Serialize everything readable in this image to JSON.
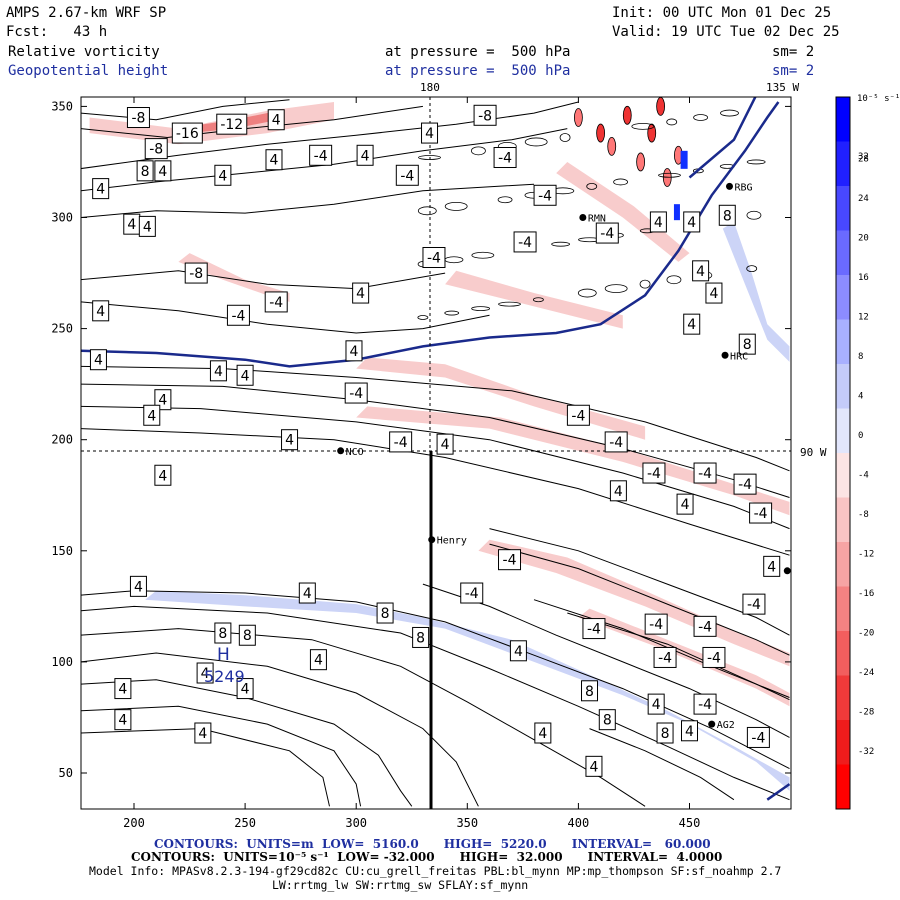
{
  "header": {
    "line1_left": "AMPS 2.67-km WRF SP",
    "line2_left": "Fcst:   43 h",
    "init": "Init: 00 UTC Mon 01 Dec 25",
    "valid": "Valid: 19 UTC Tue 02 Dec 25",
    "field1": "Relative vorticity",
    "field1_level": "at pressure =  500 hPa",
    "field1_sm": "sm= 2",
    "field2": "Geopotential height",
    "field2_level": "at pressure =  500 hPa",
    "field2_sm": "sm= 2"
  },
  "map_labels": {
    "lon_180": "180",
    "lon_135w": "135 W",
    "lon_90w": "90 W",
    "high_symbol": "H",
    "high_value": "5249"
  },
  "stations": [
    {
      "name": "NCO",
      "x": 293,
      "y": 195
    },
    {
      "name": "Henry",
      "x": 334,
      "y": 155
    },
    {
      "name": "AG2",
      "x": 460,
      "y": 72
    },
    {
      "name": "RBG",
      "x": 468,
      "y": 314
    },
    {
      "name": "RMN",
      "x": 402,
      "y": 300
    },
    {
      "name": "HRC",
      "x": 466,
      "y": 238
    },
    {
      "name": "",
      "x": 494,
      "y": 141
    }
  ],
  "chart_data": {
    "type": "contour",
    "xlim": [
      175,
      495
    ],
    "ylim": [
      35,
      355
    ],
    "xticks": [
      200,
      250,
      300,
      350,
      400,
      450
    ],
    "yticks": [
      50,
      100,
      150,
      200,
      250,
      300,
      350
    ],
    "colorbar": {
      "unit_label": "10⁻⁵ s⁻¹",
      "ticks": [
        32,
        28,
        24,
        20,
        16,
        12,
        8,
        4,
        0,
        -4,
        -8,
        -12,
        -16,
        -20,
        -24,
        -28,
        -32
      ]
    },
    "height_contour": {
      "label": "5249 high",
      "points": [
        [
          176,
          240
        ],
        [
          210,
          239
        ],
        [
          250,
          236
        ],
        [
          270,
          233
        ],
        [
          300,
          236
        ],
        [
          330,
          242
        ],
        [
          360,
          246
        ],
        [
          390,
          248
        ],
        [
          410,
          252
        ],
        [
          430,
          265
        ],
        [
          445,
          285
        ],
        [
          460,
          310
        ],
        [
          475,
          330
        ],
        [
          485,
          345
        ],
        [
          490,
          352
        ]
      ]
    },
    "contour_labels": [
      {
        "x": 202,
        "y": 345,
        "v": "-8"
      },
      {
        "x": 224,
        "y": 338,
        "v": "-16"
      },
      {
        "x": 244,
        "y": 342,
        "v": "-12"
      },
      {
        "x": 264,
        "y": 344,
        "v": "4"
      },
      {
        "x": 210,
        "y": 331,
        "v": "-8"
      },
      {
        "x": 205,
        "y": 321,
        "v": "8"
      },
      {
        "x": 213,
        "y": 321,
        "v": "4"
      },
      {
        "x": 240,
        "y": 319,
        "v": "4"
      },
      {
        "x": 263,
        "y": 326,
        "v": "4"
      },
      {
        "x": 284,
        "y": 328,
        "v": "-4"
      },
      {
        "x": 304,
        "y": 328,
        "v": "4"
      },
      {
        "x": 333,
        "y": 338,
        "v": "4"
      },
      {
        "x": 358,
        "y": 346,
        "v": "-8"
      },
      {
        "x": 367,
        "y": 327,
        "v": "-4"
      },
      {
        "x": 323,
        "y": 319,
        "v": "-4"
      },
      {
        "x": 385,
        "y": 310,
        "v": "-4"
      },
      {
        "x": 185,
        "y": 313,
        "v": "4"
      },
      {
        "x": 199,
        "y": 297,
        "v": "4"
      },
      {
        "x": 206,
        "y": 296,
        "v": "4"
      },
      {
        "x": 335,
        "y": 282,
        "v": "-4"
      },
      {
        "x": 376,
        "y": 289,
        "v": "-4"
      },
      {
        "x": 413,
        "y": 293,
        "v": "-4"
      },
      {
        "x": 436,
        "y": 298,
        "v": "4"
      },
      {
        "x": 467,
        "y": 301,
        "v": "8"
      },
      {
        "x": 451,
        "y": 298,
        "v": "4"
      },
      {
        "x": 455,
        "y": 276,
        "v": "4"
      },
      {
        "x": 461,
        "y": 266,
        "v": "4"
      },
      {
        "x": 228,
        "y": 275,
        "v": "-8"
      },
      {
        "x": 264,
        "y": 262,
        "v": "-4"
      },
      {
        "x": 247,
        "y": 256,
        "v": "-4"
      },
      {
        "x": 185,
        "y": 258,
        "v": "4"
      },
      {
        "x": 302,
        "y": 266,
        "v": "4"
      },
      {
        "x": 451,
        "y": 252,
        "v": "4"
      },
      {
        "x": 476,
        "y": 243,
        "v": "8"
      },
      {
        "x": 184,
        "y": 236,
        "v": "4"
      },
      {
        "x": 299,
        "y": 240,
        "v": "4"
      },
      {
        "x": 250,
        "y": 229,
        "v": "4"
      },
      {
        "x": 238,
        "y": 231,
        "v": "4"
      },
      {
        "x": 300,
        "y": 221,
        "v": "-4"
      },
      {
        "x": 213,
        "y": 218,
        "v": "4"
      },
      {
        "x": 208,
        "y": 211,
        "v": "4"
      },
      {
        "x": 270,
        "y": 200,
        "v": "4"
      },
      {
        "x": 320,
        "y": 199,
        "v": "-4"
      },
      {
        "x": 340,
        "y": 198,
        "v": "4"
      },
      {
        "x": 400,
        "y": 211,
        "v": "-4"
      },
      {
        "x": 417,
        "y": 199,
        "v": "-4"
      },
      {
        "x": 213,
        "y": 184,
        "v": "4"
      },
      {
        "x": 434,
        "y": 185,
        "v": "-4"
      },
      {
        "x": 457,
        "y": 185,
        "v": "-4"
      },
      {
        "x": 475,
        "y": 180,
        "v": "-4"
      },
      {
        "x": 418,
        "y": 177,
        "v": "4"
      },
      {
        "x": 448,
        "y": 171,
        "v": "4"
      },
      {
        "x": 482,
        "y": 167,
        "v": "-4"
      },
      {
        "x": 369,
        "y": 146,
        "v": "-4"
      },
      {
        "x": 487,
        "y": 143,
        "v": "4"
      },
      {
        "x": 352,
        "y": 131,
        "v": "-4"
      },
      {
        "x": 479,
        "y": 126,
        "v": "-4"
      },
      {
        "x": 202,
        "y": 134,
        "v": "4"
      },
      {
        "x": 278,
        "y": 131,
        "v": "4"
      },
      {
        "x": 313,
        "y": 122,
        "v": "8"
      },
      {
        "x": 329,
        "y": 111,
        "v": "8"
      },
      {
        "x": 240,
        "y": 113,
        "v": "8"
      },
      {
        "x": 251,
        "y": 112,
        "v": "8"
      },
      {
        "x": 407,
        "y": 115,
        "v": "-4"
      },
      {
        "x": 435,
        "y": 117,
        "v": "-4"
      },
      {
        "x": 457,
        "y": 116,
        "v": "-4"
      },
      {
        "x": 373,
        "y": 105,
        "v": "4"
      },
      {
        "x": 283,
        "y": 101,
        "v": "4"
      },
      {
        "x": 439,
        "y": 102,
        "v": "-4"
      },
      {
        "x": 461,
        "y": 102,
        "v": "-4"
      },
      {
        "x": 232,
        "y": 95,
        "v": "4"
      },
      {
        "x": 195,
        "y": 88,
        "v": "4"
      },
      {
        "x": 250,
        "y": 88,
        "v": "4"
      },
      {
        "x": 405,
        "y": 87,
        "v": "8"
      },
      {
        "x": 435,
        "y": 81,
        "v": "4"
      },
      {
        "x": 457,
        "y": 81,
        "v": "-4"
      },
      {
        "x": 195,
        "y": 74,
        "v": "4"
      },
      {
        "x": 413,
        "y": 74,
        "v": "8"
      },
      {
        "x": 231,
        "y": 68,
        "v": "4"
      },
      {
        "x": 384,
        "y": 68,
        "v": "4"
      },
      {
        "x": 439,
        "y": 68,
        "v": "8"
      },
      {
        "x": 450,
        "y": 69,
        "v": "4"
      },
      {
        "x": 481,
        "y": 66,
        "v": "-4"
      },
      {
        "x": 407,
        "y": 53,
        "v": "4"
      }
    ]
  },
  "footer": {
    "line1": "CONTOURS:  UNITS=m  LOW=  5160.0      HIGH=  5220.0      INTERVAL=   60.000",
    "line2": "CONTOURS:  UNITS=10⁻⁵ s⁻¹  LOW= -32.000      HIGH=  32.000      INTERVAL=  4.0000",
    "line3": "Model Info: MPASv8.2.3-194-gf29cd82c CU:cu_grell_freitas PBL:bl_mynn MP:mp_thompson SF:sf_noahmp 2.7",
    "line4": "LW:rrtmg_lw SW:rrtmg_sw SFLAY:sf_mynn"
  },
  "colors": {
    "height_line": "#1a2a8c",
    "positive_max": "#0000ff",
    "negative_max": "#ff0000"
  }
}
